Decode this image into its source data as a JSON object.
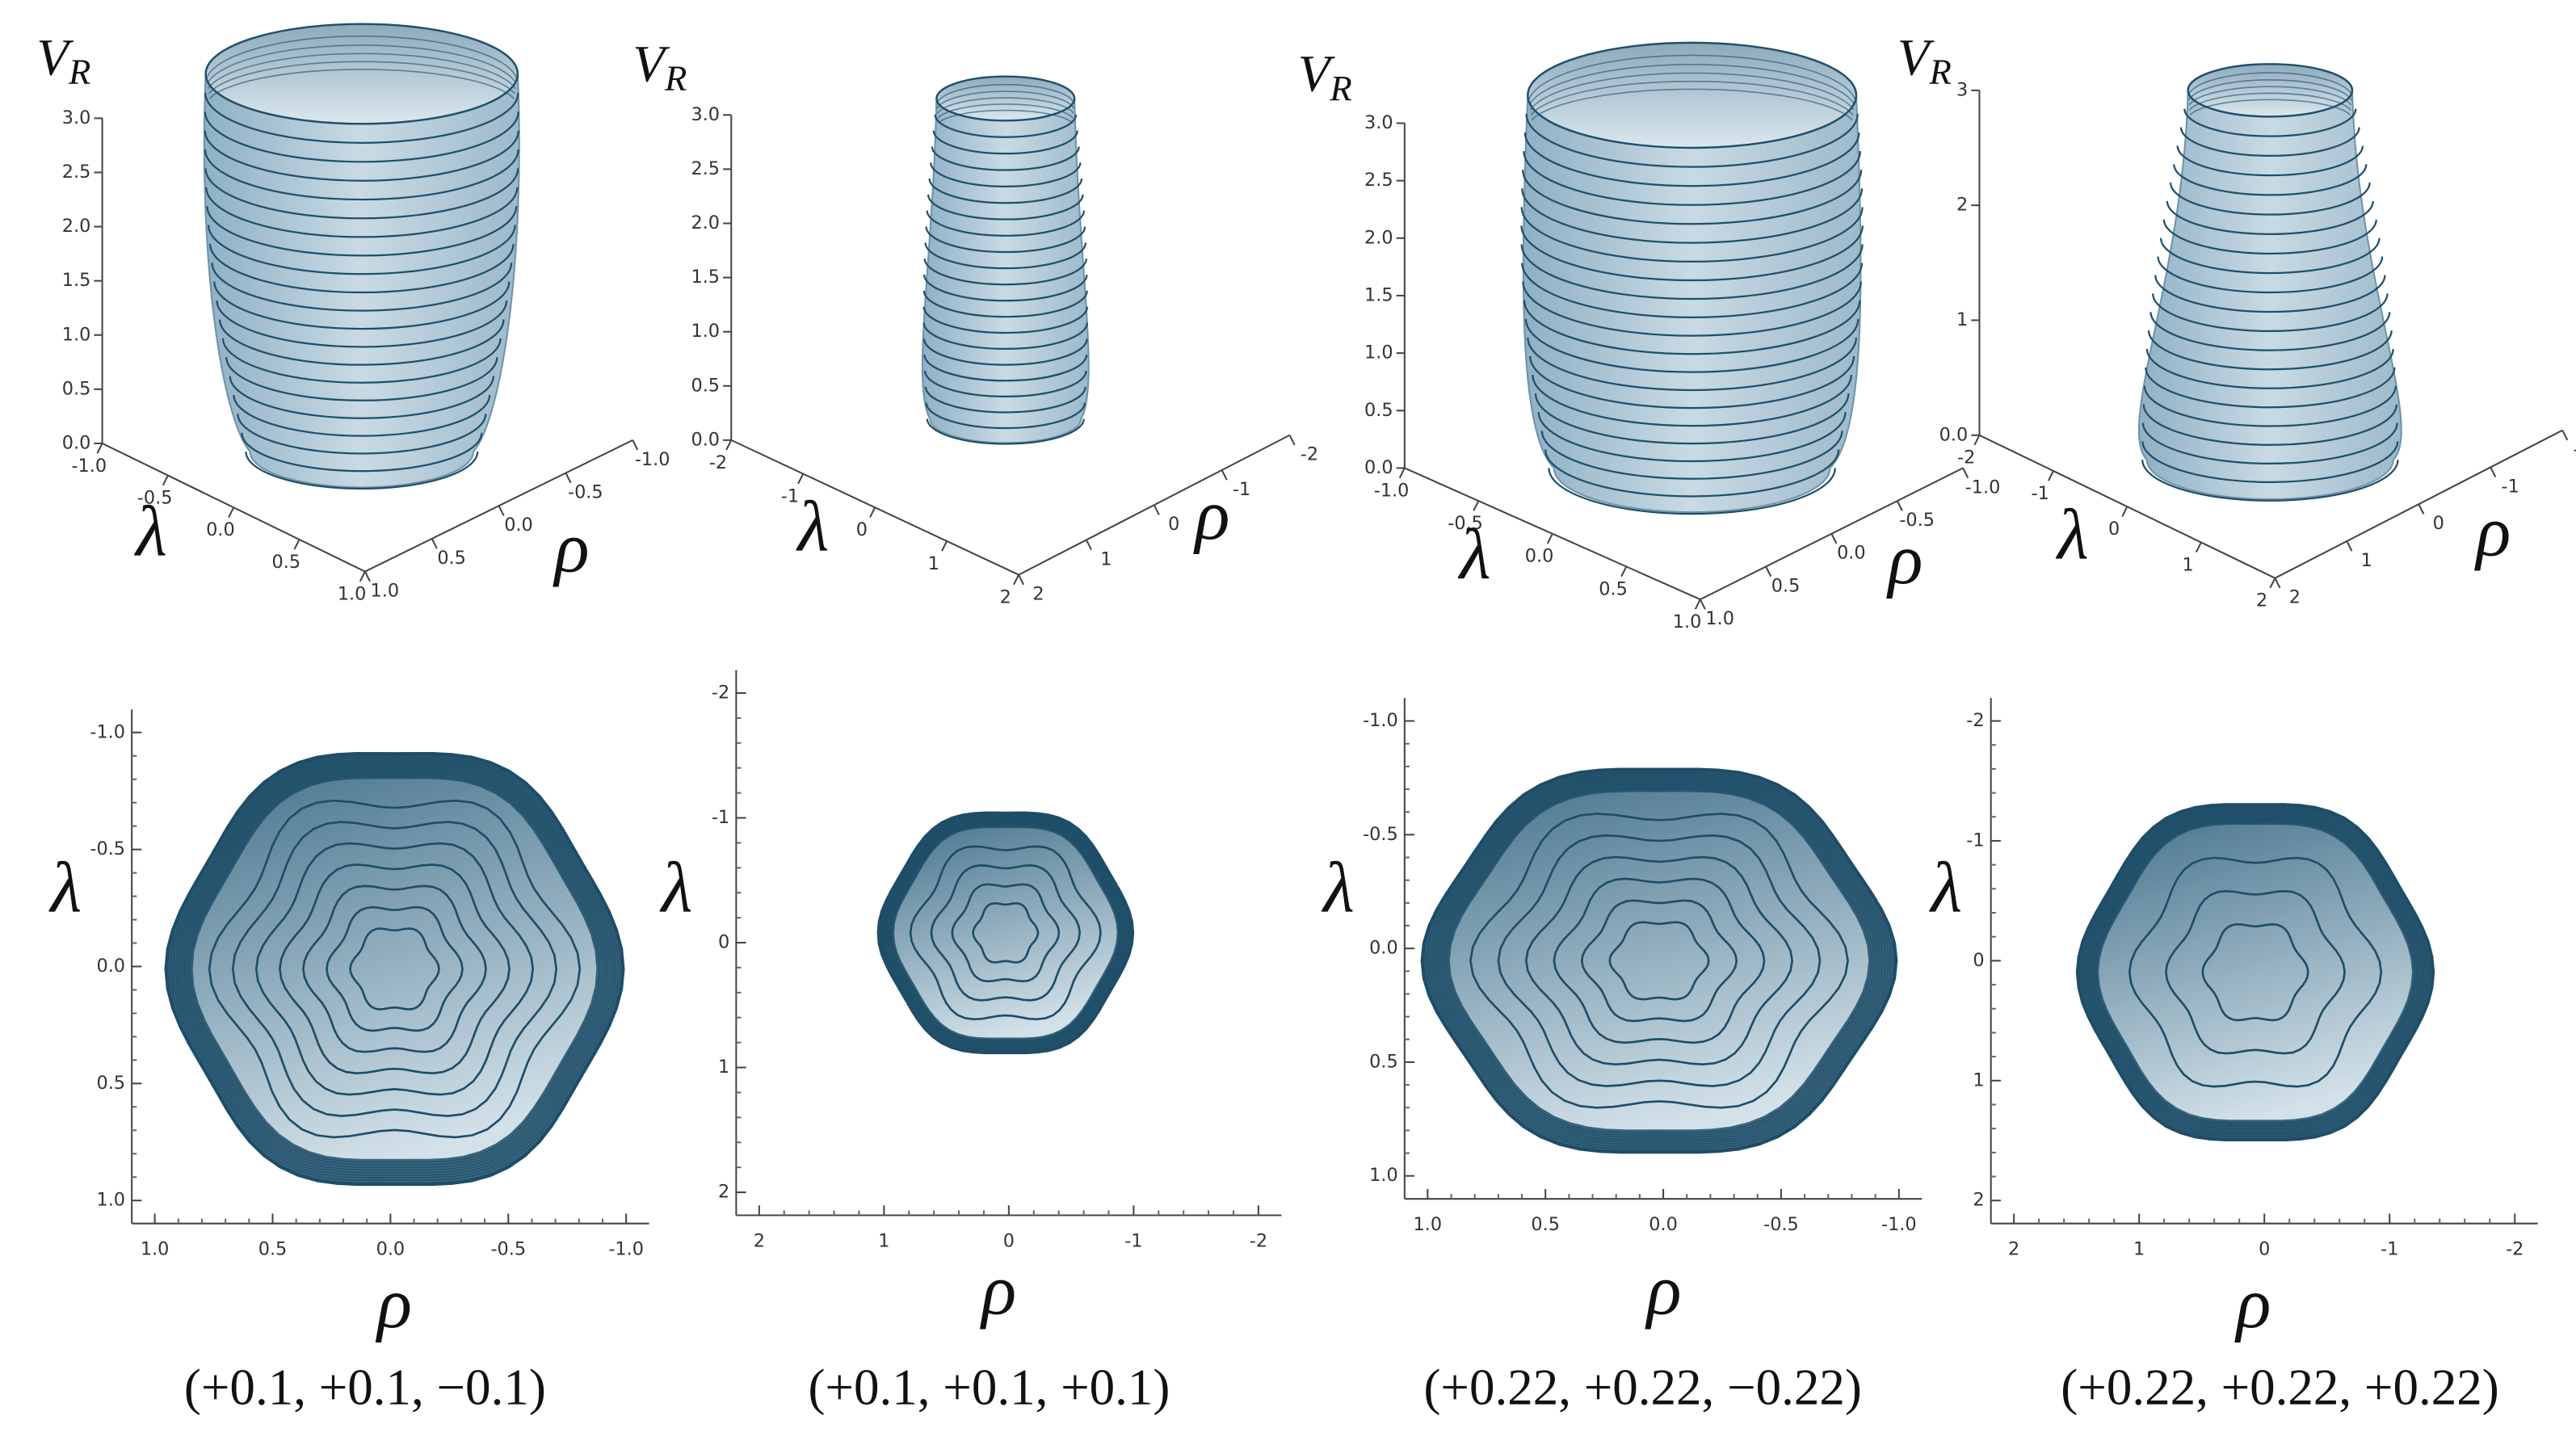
{
  "panels": [
    {
      "caption": "(+0.1, +0.1, −0.1)",
      "surface": {
        "z_label": "V",
        "z_label_sub": "R",
        "x_label": "λ",
        "y_label": "ρ",
        "zticks": [
          "0.0",
          "0.5",
          "1.0",
          "1.5",
          "2.0",
          "2.5",
          "3.0"
        ],
        "xticks": [
          "-1.0",
          "-0.5",
          "0.0",
          "0.5",
          "1.0"
        ],
        "yticks": [
          "1.0",
          "0.5",
          "0.0",
          "-0.5",
          "-1.0"
        ]
      },
      "contour": {
        "y_label": "λ",
        "x_label": "ρ",
        "yticks": [
          "-1.0",
          "-0.5",
          "0.0",
          "0.5",
          "1.0"
        ],
        "xticks": [
          "1.0",
          "0.5",
          "0.0",
          "-0.5",
          "-1.0"
        ]
      }
    },
    {
      "caption": "(+0.1, +0.1, +0.1)",
      "surface": {
        "z_label": "V",
        "z_label_sub": "R",
        "x_label": "λ",
        "y_label": "ρ",
        "zticks": [
          "0.0",
          "0.5",
          "1.0",
          "1.5",
          "2.0",
          "2.5",
          "3.0"
        ],
        "xticks": [
          "-2",
          "-1",
          "0",
          "1",
          "2"
        ],
        "yticks": [
          "2",
          "1",
          "0",
          "-1",
          "-2"
        ]
      },
      "contour": {
        "y_label": "λ",
        "x_label": "ρ",
        "yticks": [
          "-2",
          "-1",
          "0",
          "1",
          "2"
        ],
        "xticks": [
          "2",
          "1",
          "0",
          "-1",
          "-2"
        ]
      }
    },
    {
      "caption": "(+0.22, +0.22, −0.22)",
      "surface": {
        "z_label": "V",
        "z_label_sub": "R",
        "x_label": "λ",
        "y_label": "ρ",
        "zticks": [
          "0.0",
          "0.5",
          "1.0",
          "1.5",
          "2.0",
          "2.5",
          "3.0"
        ],
        "xticks": [
          "-1.0",
          "-0.5",
          "0.0",
          "0.5",
          "1.0"
        ],
        "yticks": [
          "1.0",
          "0.5",
          "0.0",
          "-0.5",
          "-1.0"
        ]
      },
      "contour": {
        "y_label": "λ",
        "x_label": "ρ",
        "yticks": [
          "-1.0",
          "-0.5",
          "0.0",
          "0.5",
          "1.0"
        ],
        "xticks": [
          "1.0",
          "0.5",
          "0.0",
          "-0.5",
          "-1.0"
        ]
      }
    },
    {
      "caption": "(+0.22, +0.22, +0.22)",
      "surface": {
        "z_label": "V",
        "z_label_sub": "R",
        "x_label": "λ",
        "y_label": "ρ",
        "zticks": [
          "0.0",
          "1",
          "2",
          "3"
        ],
        "xticks": [
          "-2",
          "-1",
          "0",
          "1",
          "2"
        ],
        "yticks": [
          "2",
          "1",
          "0",
          "-1",
          "-2"
        ]
      },
      "contour": {
        "y_label": "λ",
        "x_label": "ρ",
        "yticks": [
          "-2",
          "-1",
          "0",
          "1",
          "2"
        ],
        "xticks": [
          "2",
          "1",
          "0",
          "-1",
          "-2"
        ]
      }
    }
  ]
}
